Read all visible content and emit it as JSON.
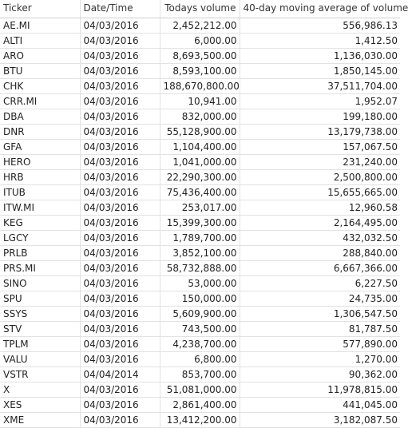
{
  "table": {
    "columns": [
      "Ticker",
      "Date/Time",
      "Todays volume",
      "40-day moving average of volume"
    ],
    "rows": [
      {
        "ticker": "AE.MI",
        "date": "04/03/2016",
        "volume": "2,452,212.00",
        "avg": "556,986.13"
      },
      {
        "ticker": "ALTI",
        "date": "04/03/2016",
        "volume": "6,000.00",
        "avg": "1,412.50"
      },
      {
        "ticker": "ARO",
        "date": "04/03/2016",
        "volume": "8,693,500.00",
        "avg": "1,136,030.00"
      },
      {
        "ticker": "BTU",
        "date": "04/03/2016",
        "volume": "8,593,100.00",
        "avg": "1,850,145.00"
      },
      {
        "ticker": "CHK",
        "date": "04/03/2016",
        "volume": "188,670,800.00",
        "avg": "37,511,704.00"
      },
      {
        "ticker": "CRR.MI",
        "date": "04/03/2016",
        "volume": "10,941.00",
        "avg": "1,952.07"
      },
      {
        "ticker": "DBA",
        "date": "04/03/2016",
        "volume": "832,000.00",
        "avg": "199,180.00"
      },
      {
        "ticker": "DNR",
        "date": "04/03/2016",
        "volume": "55,128,900.00",
        "avg": "13,179,738.00"
      },
      {
        "ticker": "GFA",
        "date": "04/03/2016",
        "volume": "1,104,400.00",
        "avg": "157,067.50"
      },
      {
        "ticker": "HERO",
        "date": "04/03/2016",
        "volume": "1,041,000.00",
        "avg": "231,240.00"
      },
      {
        "ticker": "HRB",
        "date": "04/03/2016",
        "volume": "22,290,300.00",
        "avg": "2,500,800.00"
      },
      {
        "ticker": "ITUB",
        "date": "04/03/2016",
        "volume": "75,436,400.00",
        "avg": "15,655,665.00"
      },
      {
        "ticker": "ITW.MI",
        "date": "04/03/2016",
        "volume": "253,017.00",
        "avg": "12,960.58"
      },
      {
        "ticker": "KEG",
        "date": "04/03/2016",
        "volume": "15,399,300.00",
        "avg": "2,164,495.00"
      },
      {
        "ticker": "LGCY",
        "date": "04/03/2016",
        "volume": "1,789,700.00",
        "avg": "432,032.50"
      },
      {
        "ticker": "PRLB",
        "date": "04/03/2016",
        "volume": "3,852,100.00",
        "avg": "288,840.00"
      },
      {
        "ticker": "PRS.MI",
        "date": "04/03/2016",
        "volume": "58,732,888.00",
        "avg": "6,667,366.00"
      },
      {
        "ticker": "SINO",
        "date": "04/03/2016",
        "volume": "53,000.00",
        "avg": "6,227.50"
      },
      {
        "ticker": "SPU",
        "date": "04/03/2016",
        "volume": "150,000.00",
        "avg": "24,735.00"
      },
      {
        "ticker": "SSYS",
        "date": "04/03/2016",
        "volume": "5,609,900.00",
        "avg": "1,306,547.50"
      },
      {
        "ticker": "STV",
        "date": "04/03/2016",
        "volume": "743,500.00",
        "avg": "81,787.50"
      },
      {
        "ticker": "TPLM",
        "date": "04/03/2016",
        "volume": "4,238,700.00",
        "avg": "577,890.00"
      },
      {
        "ticker": "VALU",
        "date": "04/03/2016",
        "volume": "6,800.00",
        "avg": "1,270.00"
      },
      {
        "ticker": "VSTR",
        "date": "04/04/2014",
        "volume": "853,700.00",
        "avg": "90,362.00"
      },
      {
        "ticker": "X",
        "date": "04/03/2016",
        "volume": "51,081,000.00",
        "avg": "11,978,815.00"
      },
      {
        "ticker": "XES",
        "date": "04/03/2016",
        "volume": "2,861,400.00",
        "avg": "441,045.00"
      },
      {
        "ticker": "XME",
        "date": "04/03/2016",
        "volume": "13,412,200.00",
        "avg": "3,182,087.50"
      }
    ]
  }
}
